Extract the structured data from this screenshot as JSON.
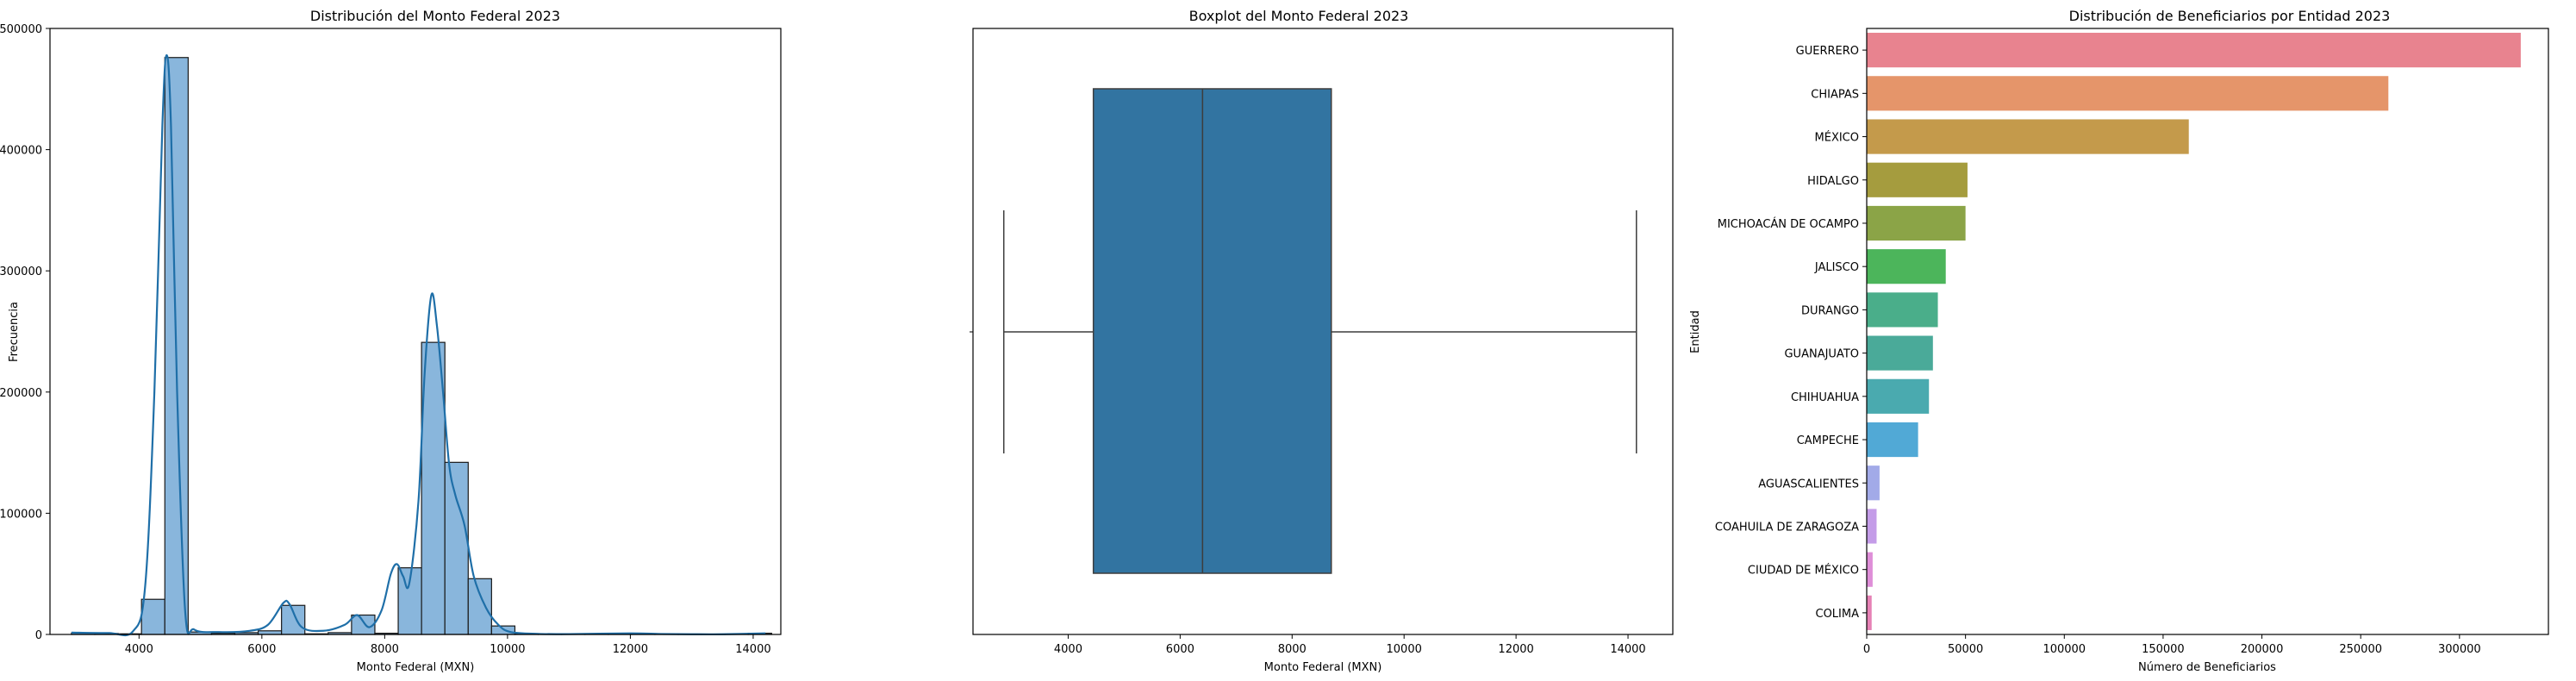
{
  "chart_data": [
    {
      "type": "histogram",
      "title": "Distribución del Monto Federal 2023",
      "xlabel": "Monto Federal (MXN)",
      "ylabel": "Frecuencia",
      "xlim": [
        2550,
        14450
      ],
      "ylim": [
        0,
        500000
      ],
      "xticks": [
        4000,
        6000,
        8000,
        10000,
        12000,
        14000
      ],
      "yticks": [
        0,
        100000,
        200000,
        300000,
        400000,
        500000
      ],
      "bar_color": "#89b6dc",
      "kde_color": "#1f6fa8",
      "bins": [
        {
          "x0": 2900,
          "x1": 3280,
          "count": 1200
        },
        {
          "x0": 3280,
          "x1": 3660,
          "count": 800
        },
        {
          "x0": 3660,
          "x1": 4040,
          "count": 500
        },
        {
          "x0": 4040,
          "x1": 4420,
          "count": 29000
        },
        {
          "x0": 4420,
          "x1": 4800,
          "count": 476000
        },
        {
          "x0": 4800,
          "x1": 5180,
          "count": 2000
        },
        {
          "x0": 5180,
          "x1": 5560,
          "count": 1000
        },
        {
          "x0": 5560,
          "x1": 5940,
          "count": 1500
        },
        {
          "x0": 5940,
          "x1": 6320,
          "count": 3000
        },
        {
          "x0": 6320,
          "x1": 6700,
          "count": 24000
        },
        {
          "x0": 6700,
          "x1": 7080,
          "count": 500
        },
        {
          "x0": 7080,
          "x1": 7460,
          "count": 1500
        },
        {
          "x0": 7460,
          "x1": 7840,
          "count": 16000
        },
        {
          "x0": 7840,
          "x1": 8220,
          "count": 1000
        },
        {
          "x0": 8220,
          "x1": 8600,
          "count": 55000
        },
        {
          "x0": 8600,
          "x1": 8980,
          "count": 241000
        },
        {
          "x0": 8980,
          "x1": 9360,
          "count": 142000
        },
        {
          "x0": 9360,
          "x1": 9740,
          "count": 46000
        },
        {
          "x0": 9740,
          "x1": 10120,
          "count": 7000
        },
        {
          "x0": 10120,
          "x1": 10500,
          "count": 300
        },
        {
          "x0": 10500,
          "x1": 10880,
          "count": 200
        },
        {
          "x0": 10880,
          "x1": 11260,
          "count": 100
        },
        {
          "x0": 11260,
          "x1": 11640,
          "count": 100
        },
        {
          "x0": 11640,
          "x1": 12020,
          "count": 800
        },
        {
          "x0": 12020,
          "x1": 12400,
          "count": 500
        },
        {
          "x0": 12400,
          "x1": 12780,
          "count": 100
        },
        {
          "x0": 12780,
          "x1": 13160,
          "count": 100
        },
        {
          "x0": 13160,
          "x1": 13540,
          "count": 100
        },
        {
          "x0": 13540,
          "x1": 13920,
          "count": 100
        },
        {
          "x0": 13920,
          "x1": 14300,
          "count": 1000
        }
      ],
      "kde": [
        [
          2900,
          1500
        ],
        [
          3500,
          1200
        ],
        [
          3900,
          2500
        ],
        [
          4100,
          40000
        ],
        [
          4250,
          200000
        ],
        [
          4380,
          420000
        ],
        [
          4450,
          478000
        ],
        [
          4520,
          420000
        ],
        [
          4620,
          200000
        ],
        [
          4750,
          20000
        ],
        [
          4900,
          4000
        ],
        [
          5300,
          2000
        ],
        [
          5800,
          3000
        ],
        [
          6100,
          8000
        ],
        [
          6350,
          26000
        ],
        [
          6450,
          25000
        ],
        [
          6650,
          6000
        ],
        [
          7000,
          3000
        ],
        [
          7350,
          8000
        ],
        [
          7550,
          16000
        ],
        [
          7750,
          6000
        ],
        [
          7950,
          20000
        ],
        [
          8100,
          50000
        ],
        [
          8200,
          58000
        ],
        [
          8300,
          48000
        ],
        [
          8400,
          42000
        ],
        [
          8550,
          110000
        ],
        [
          8650,
          215000
        ],
        [
          8760,
          280000
        ],
        [
          8850,
          255000
        ],
        [
          8950,
          200000
        ],
        [
          9050,
          140000
        ],
        [
          9150,
          115000
        ],
        [
          9300,
          90000
        ],
        [
          9450,
          48000
        ],
        [
          9650,
          22000
        ],
        [
          9850,
          8000
        ],
        [
          10050,
          2000
        ],
        [
          10500,
          500
        ],
        [
          11000,
          300
        ],
        [
          12000,
          900
        ],
        [
          12500,
          400
        ],
        [
          13000,
          200
        ],
        [
          13500,
          200
        ],
        [
          14200,
          900
        ]
      ]
    },
    {
      "type": "boxplot",
      "title": "Boxplot del Monto Federal 2023",
      "xlabel": "Monto Federal (MXN)",
      "xlim": [
        2300,
        14800
      ],
      "xticks": [
        4000,
        6000,
        8000,
        10000,
        12000,
        14000
      ],
      "box_color": "#3274a1",
      "whisker_low": 2850,
      "q1": 4450,
      "median": 6400,
      "q3": 8700,
      "whisker_high": 14150
    },
    {
      "type": "bar",
      "orientation": "horizontal",
      "title": "Distribución de Beneficiarios por Entidad 2023",
      "xlabel": "Número de Beneficiarios",
      "ylabel": "Entidad",
      "xlim": [
        0,
        345000
      ],
      "xticks": [
        0,
        50000,
        100000,
        150000,
        200000,
        250000,
        300000
      ],
      "categories": [
        "GUERRERO",
        "CHIAPAS",
        "MÉXICO",
        "HIDALGO",
        "MICHOACÁN DE OCAMPO",
        "JALISCO",
        "DURANGO",
        "GUANAJUATO",
        "CHIHUAHUA",
        "CAMPECHE",
        "AGUASCALIENTES",
        "COAHUILA DE ZARAGOZA",
        "CIUDAD DE MÉXICO",
        "COLIMA"
      ],
      "values": [
        331000,
        264000,
        163000,
        51000,
        50000,
        40000,
        36000,
        33500,
        31500,
        26000,
        6500,
        5000,
        3000,
        2500
      ],
      "colors": [
        "#e8838f",
        "#e5956a",
        "#c49a4b",
        "#a59c3e",
        "#8ba447",
        "#4cb55b",
        "#4aae8a",
        "#4aaa99",
        "#4aaaaf",
        "#51a9d6",
        "#a2aae8",
        "#c49ce8",
        "#de8ed8",
        "#e681b5"
      ]
    }
  ]
}
